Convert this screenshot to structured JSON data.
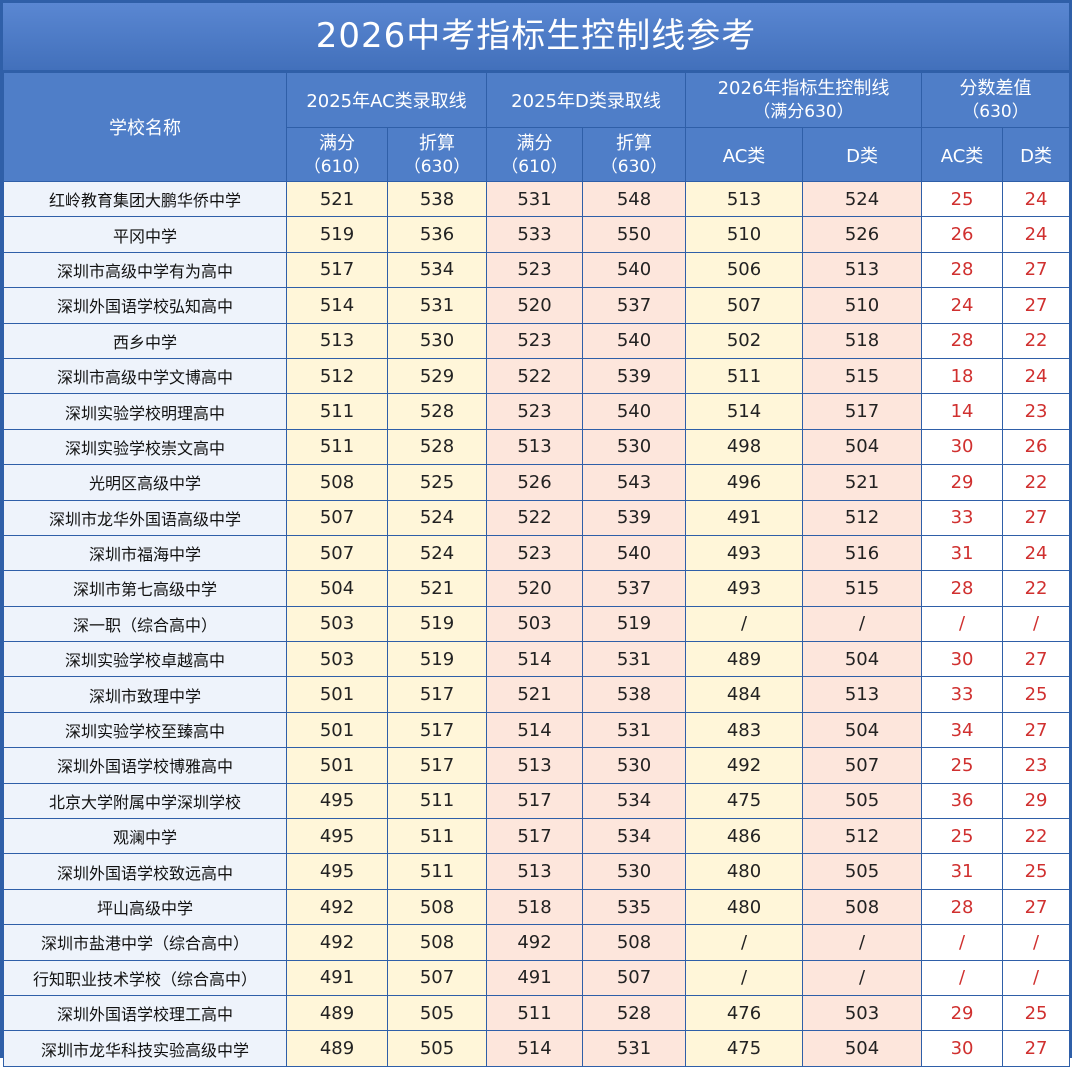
{
  "title": "2026中考指标生控制线参考",
  "headers": {
    "school": "学校名称",
    "ac2025": "2025年AC类录取线",
    "d2025": "2025年D类录取线",
    "ctl2026_line1": "2026年指标生控制线",
    "ctl2026_line2": "（满分630）",
    "diff_line1": "分数差值",
    "diff_line2": "（630）",
    "full": "满分",
    "full_sub": "（610）",
    "conv": "折算",
    "conv_sub": "（630）",
    "ac": "AC类",
    "d": "D类"
  },
  "rows": [
    {
      "school": "红岭教育集团大鹏华侨中学",
      "ac_full": "521",
      "ac_conv": "538",
      "d_full": "531",
      "d_conv": "548",
      "ctl_ac": "513",
      "ctl_d": "524",
      "diff_ac": "25",
      "diff_d": "24"
    },
    {
      "school": "平冈中学",
      "ac_full": "519",
      "ac_conv": "536",
      "d_full": "533",
      "d_conv": "550",
      "ctl_ac": "510",
      "ctl_d": "526",
      "diff_ac": "26",
      "diff_d": "24"
    },
    {
      "school": "深圳市高级中学有为高中",
      "ac_full": "517",
      "ac_conv": "534",
      "d_full": "523",
      "d_conv": "540",
      "ctl_ac": "506",
      "ctl_d": "513",
      "diff_ac": "28",
      "diff_d": "27"
    },
    {
      "school": "深圳外国语学校弘知高中",
      "ac_full": "514",
      "ac_conv": "531",
      "d_full": "520",
      "d_conv": "537",
      "ctl_ac": "507",
      "ctl_d": "510",
      "diff_ac": "24",
      "diff_d": "27"
    },
    {
      "school": "西乡中学",
      "ac_full": "513",
      "ac_conv": "530",
      "d_full": "523",
      "d_conv": "540",
      "ctl_ac": "502",
      "ctl_d": "518",
      "diff_ac": "28",
      "diff_d": "22"
    },
    {
      "school": "深圳市高级中学文博高中",
      "ac_full": "512",
      "ac_conv": "529",
      "d_full": "522",
      "d_conv": "539",
      "ctl_ac": "511",
      "ctl_d": "515",
      "diff_ac": "18",
      "diff_d": "24"
    },
    {
      "school": "深圳实验学校明理高中",
      "ac_full": "511",
      "ac_conv": "528",
      "d_full": "523",
      "d_conv": "540",
      "ctl_ac": "514",
      "ctl_d": "517",
      "diff_ac": "14",
      "diff_d": "23"
    },
    {
      "school": "深圳实验学校崇文高中",
      "ac_full": "511",
      "ac_conv": "528",
      "d_full": "513",
      "d_conv": "530",
      "ctl_ac": "498",
      "ctl_d": "504",
      "diff_ac": "30",
      "diff_d": "26"
    },
    {
      "school": "光明区高级中学",
      "ac_full": "508",
      "ac_conv": "525",
      "d_full": "526",
      "d_conv": "543",
      "ctl_ac": "496",
      "ctl_d": "521",
      "diff_ac": "29",
      "diff_d": "22"
    },
    {
      "school": "深圳市龙华外国语高级中学",
      "ac_full": "507",
      "ac_conv": "524",
      "d_full": "522",
      "d_conv": "539",
      "ctl_ac": "491",
      "ctl_d": "512",
      "diff_ac": "33",
      "diff_d": "27"
    },
    {
      "school": "深圳市福海中学",
      "ac_full": "507",
      "ac_conv": "524",
      "d_full": "523",
      "d_conv": "540",
      "ctl_ac": "493",
      "ctl_d": "516",
      "diff_ac": "31",
      "diff_d": "24"
    },
    {
      "school": "深圳市第七高级中学",
      "ac_full": "504",
      "ac_conv": "521",
      "d_full": "520",
      "d_conv": "537",
      "ctl_ac": "493",
      "ctl_d": "515",
      "diff_ac": "28",
      "diff_d": "22"
    },
    {
      "school": "深一职（综合高中）",
      "ac_full": "503",
      "ac_conv": "519",
      "d_full": "503",
      "d_conv": "519",
      "ctl_ac": "/",
      "ctl_d": "/",
      "diff_ac": "/",
      "diff_d": "/"
    },
    {
      "school": "深圳实验学校卓越高中",
      "ac_full": "503",
      "ac_conv": "519",
      "d_full": "514",
      "d_conv": "531",
      "ctl_ac": "489",
      "ctl_d": "504",
      "diff_ac": "30",
      "diff_d": "27"
    },
    {
      "school": "深圳市致理中学",
      "ac_full": "501",
      "ac_conv": "517",
      "d_full": "521",
      "d_conv": "538",
      "ctl_ac": "484",
      "ctl_d": "513",
      "diff_ac": "33",
      "diff_d": "25"
    },
    {
      "school": "深圳实验学校至臻高中",
      "ac_full": "501",
      "ac_conv": "517",
      "d_full": "514",
      "d_conv": "531",
      "ctl_ac": "483",
      "ctl_d": "504",
      "diff_ac": "34",
      "diff_d": "27"
    },
    {
      "school": "深圳外国语学校博雅高中",
      "ac_full": "501",
      "ac_conv": "517",
      "d_full": "513",
      "d_conv": "530",
      "ctl_ac": "492",
      "ctl_d": "507",
      "diff_ac": "25",
      "diff_d": "23"
    },
    {
      "school": "北京大学附属中学深圳学校",
      "ac_full": "495",
      "ac_conv": "511",
      "d_full": "517",
      "d_conv": "534",
      "ctl_ac": "475",
      "ctl_d": "505",
      "diff_ac": "36",
      "diff_d": "29"
    },
    {
      "school": "观澜中学",
      "ac_full": "495",
      "ac_conv": "511",
      "d_full": "517",
      "d_conv": "534",
      "ctl_ac": "486",
      "ctl_d": "512",
      "diff_ac": "25",
      "diff_d": "22"
    },
    {
      "school": "深圳外国语学校致远高中",
      "ac_full": "495",
      "ac_conv": "511",
      "d_full": "513",
      "d_conv": "530",
      "ctl_ac": "480",
      "ctl_d": "505",
      "diff_ac": "31",
      "diff_d": "25"
    },
    {
      "school": "坪山高级中学",
      "ac_full": "492",
      "ac_conv": "508",
      "d_full": "518",
      "d_conv": "535",
      "ctl_ac": "480",
      "ctl_d": "508",
      "diff_ac": "28",
      "diff_d": "27"
    },
    {
      "school": "深圳市盐港中学（综合高中）",
      "ac_full": "492",
      "ac_conv": "508",
      "d_full": "492",
      "d_conv": "508",
      "ctl_ac": "/",
      "ctl_d": "/",
      "diff_ac": "/",
      "diff_d": "/"
    },
    {
      "school": "行知职业技术学校（综合高中）",
      "ac_full": "491",
      "ac_conv": "507",
      "d_full": "491",
      "d_conv": "507",
      "ctl_ac": "/",
      "ctl_d": "/",
      "diff_ac": "/",
      "diff_d": "/"
    },
    {
      "school": "深圳外国语学校理工高中",
      "ac_full": "489",
      "ac_conv": "505",
      "d_full": "511",
      "d_conv": "528",
      "ctl_ac": "476",
      "ctl_d": "503",
      "diff_ac": "29",
      "diff_d": "25"
    },
    {
      "school": "深圳市龙华科技实验高级中学",
      "ac_full": "489",
      "ac_conv": "505",
      "d_full": "514",
      "d_conv": "531",
      "ctl_ac": "475",
      "ctl_d": "504",
      "diff_ac": "30",
      "diff_d": "27"
    }
  ]
}
